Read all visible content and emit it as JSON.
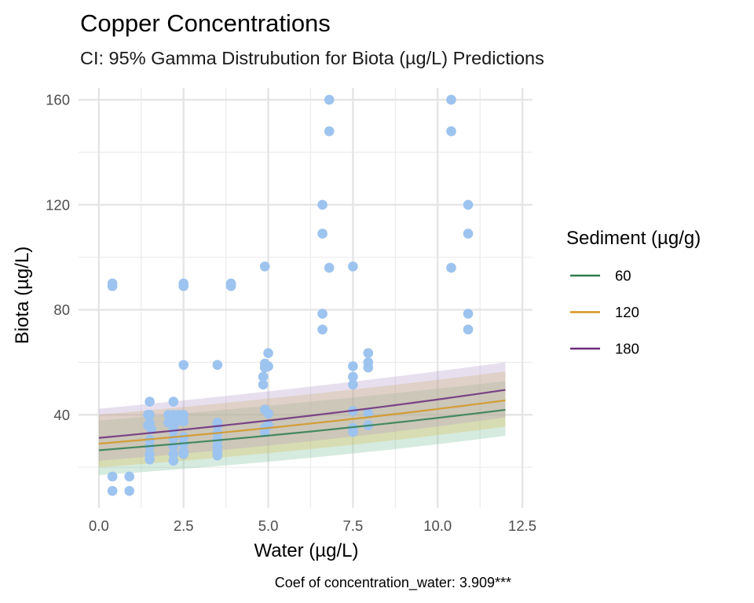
{
  "chart_data": {
    "type": "scatter",
    "title": "Copper Concentrations",
    "subtitle": "CI: 95% Gamma Distrubution for Biota (µg/L) Predictions",
    "xlabel": "Water (µg/L)",
    "ylabel": "Biota (µg/L)",
    "caption": "Coef of concentration_water: 3.909***",
    "xlim": [
      -0.6,
      12.8
    ],
    "ylim": [
      4.5,
      164.5
    ],
    "x_ticks": [
      0,
      2.5,
      5,
      7.5,
      10,
      12.5
    ],
    "x_tick_labels": [
      "0.0",
      "2.5",
      "5.0",
      "7.5",
      "10.0",
      "12.5"
    ],
    "y_ticks": [
      40,
      80,
      120,
      160
    ],
    "y_tick_labels": [
      "40",
      "80",
      "120",
      "160"
    ],
    "x_minor": [
      1.25,
      3.75,
      6.25,
      8.75,
      11.25
    ],
    "y_minor": [
      20,
      60,
      100,
      140
    ],
    "grid": true,
    "point_color": "#9DC3EF",
    "points": [
      {
        "x": 0.4,
        "y": 16.5
      },
      {
        "x": 0.4,
        "y": 11
      },
      {
        "x": 0.9,
        "y": 16.5
      },
      {
        "x": 0.9,
        "y": 11
      },
      {
        "x": 0.4,
        "y": 90
      },
      {
        "x": 0.4,
        "y": 89
      },
      {
        "x": 1.5,
        "y": 45
      },
      {
        "x": 1.5,
        "y": 40
      },
      {
        "x": 1.45,
        "y": 40
      },
      {
        "x": 1.5,
        "y": 37
      },
      {
        "x": 1.45,
        "y": 36
      },
      {
        "x": 1.55,
        "y": 34.5
      },
      {
        "x": 1.5,
        "y": 30.5
      },
      {
        "x": 1.5,
        "y": 28
      },
      {
        "x": 1.5,
        "y": 25
      },
      {
        "x": 1.5,
        "y": 23
      },
      {
        "x": 2.2,
        "y": 45
      },
      {
        "x": 2.05,
        "y": 40
      },
      {
        "x": 2.2,
        "y": 40
      },
      {
        "x": 2.35,
        "y": 40
      },
      {
        "x": 2.05,
        "y": 37
      },
      {
        "x": 2.3,
        "y": 37.5
      },
      {
        "x": 2.2,
        "y": 35.5
      },
      {
        "x": 2.2,
        "y": 34
      },
      {
        "x": 2.2,
        "y": 31
      },
      {
        "x": 2.2,
        "y": 28
      },
      {
        "x": 2.2,
        "y": 25
      },
      {
        "x": 2.2,
        "y": 22.5
      },
      {
        "x": 2.5,
        "y": 40
      },
      {
        "x": 2.5,
        "y": 37.5
      },
      {
        "x": 2.5,
        "y": 31.5
      },
      {
        "x": 2.5,
        "y": 29
      },
      {
        "x": 2.5,
        "y": 26
      },
      {
        "x": 2.5,
        "y": 25
      },
      {
        "x": 2.5,
        "y": 90
      },
      {
        "x": 2.5,
        "y": 89
      },
      {
        "x": 2.5,
        "y": 59
      },
      {
        "x": 3.5,
        "y": 59
      },
      {
        "x": 3.5,
        "y": 37
      },
      {
        "x": 3.5,
        "y": 36
      },
      {
        "x": 3.5,
        "y": 33
      },
      {
        "x": 3.5,
        "y": 30.5
      },
      {
        "x": 3.5,
        "y": 28
      },
      {
        "x": 3.5,
        "y": 26
      },
      {
        "x": 3.5,
        "y": 24.5
      },
      {
        "x": 3.9,
        "y": 90
      },
      {
        "x": 3.9,
        "y": 89
      },
      {
        "x": 4.9,
        "y": 96.5
      },
      {
        "x": 5.0,
        "y": 63.5
      },
      {
        "x": 4.9,
        "y": 59.5
      },
      {
        "x": 5.0,
        "y": 58.5
      },
      {
        "x": 4.9,
        "y": 58
      },
      {
        "x": 4.85,
        "y": 54.5
      },
      {
        "x": 4.85,
        "y": 51.5
      },
      {
        "x": 4.9,
        "y": 42
      },
      {
        "x": 5.0,
        "y": 40.5
      },
      {
        "x": 5.0,
        "y": 36
      },
      {
        "x": 4.9,
        "y": 35
      },
      {
        "x": 4.9,
        "y": 33.5
      },
      {
        "x": 6.6,
        "y": 120
      },
      {
        "x": 6.6,
        "y": 109
      },
      {
        "x": 6.6,
        "y": 78.5
      },
      {
        "x": 6.6,
        "y": 72.5
      },
      {
        "x": 6.8,
        "y": 160
      },
      {
        "x": 6.8,
        "y": 148
      },
      {
        "x": 6.8,
        "y": 96
      },
      {
        "x": 7.5,
        "y": 96.5
      },
      {
        "x": 7.5,
        "y": 58.5
      },
      {
        "x": 7.5,
        "y": 54.5
      },
      {
        "x": 7.5,
        "y": 51.5
      },
      {
        "x": 7.5,
        "y": 41.5
      },
      {
        "x": 7.5,
        "y": 35
      },
      {
        "x": 7.5,
        "y": 33.5
      },
      {
        "x": 7.95,
        "y": 63.5
      },
      {
        "x": 7.95,
        "y": 60
      },
      {
        "x": 7.95,
        "y": 58
      },
      {
        "x": 7.95,
        "y": 40.5
      },
      {
        "x": 7.95,
        "y": 36
      },
      {
        "x": 10.4,
        "y": 160
      },
      {
        "x": 10.4,
        "y": 148
      },
      {
        "x": 10.4,
        "y": 96
      },
      {
        "x": 10.9,
        "y": 120
      },
      {
        "x": 10.9,
        "y": 109
      },
      {
        "x": 10.9,
        "y": 78.5
      },
      {
        "x": 10.9,
        "y": 72.5
      }
    ],
    "legend": {
      "title": "Sediment (µg/g)",
      "position": "right"
    },
    "series": [
      {
        "name": "60",
        "color": "#2E7D4F",
        "band_color": "#7FC09A",
        "x": [
          0,
          12
        ],
        "fit": [
          26.5,
          41.9
        ],
        "lower": [
          17,
          32
        ],
        "upper": [
          37.8,
          52.8
        ]
      },
      {
        "name": "120",
        "color": "#D4951E",
        "band_color": "#D9BE55",
        "x": [
          0,
          12
        ],
        "fit": [
          29,
          45.5
        ],
        "lower": [
          20,
          35.5
        ],
        "upper": [
          40,
          56.5
        ]
      },
      {
        "name": "180",
        "color": "#6A2C7A",
        "band_color": "#B59AC9",
        "x": [
          0,
          12
        ],
        "fit": [
          31.2,
          49.5
        ],
        "lower": [
          22.5,
          39
        ],
        "upper": [
          42.3,
          60
        ]
      }
    ]
  }
}
